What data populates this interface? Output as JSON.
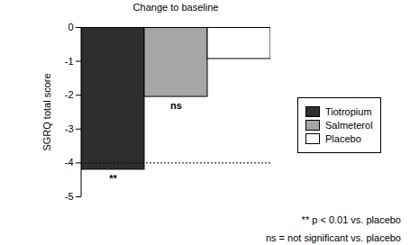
{
  "chart_data": {
    "type": "bar",
    "title": "Change to baseline",
    "ylabel": "SGRQ total score",
    "categories": [
      "Tiotropium",
      "Salmeterol",
      "Placebo"
    ],
    "values": [
      -4.2,
      -2.05,
      -0.93
    ],
    "colors": [
      "#2e2e2e",
      "#a6a6a6",
      "#ffffff"
    ],
    "ylim": [
      -5,
      0
    ],
    "yticks": [
      0,
      -1,
      -2,
      -3,
      -4,
      -5
    ],
    "reference_line": -4,
    "annotations": [
      {
        "category": "Tiotropium",
        "text": "**"
      },
      {
        "category": "Salmeterol",
        "text": "ns"
      }
    ],
    "notes": [
      "** p < 0.01 vs. placebo",
      "ns = not significant vs. placebo"
    ],
    "legend": "right",
    "tick_labels": "y"
  }
}
